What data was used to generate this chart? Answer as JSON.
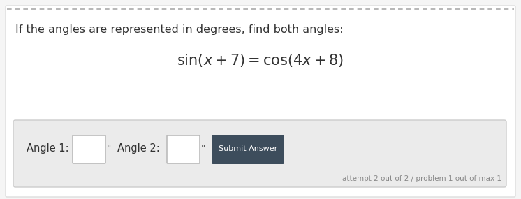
{
  "bg_color": "#f5f5f5",
  "card_bg": "#ffffff",
  "card_border": "#dddddd",
  "top_dashed_color": "#aaaaaa",
  "instruction_text": "If the angles are represented in degrees, find both angles:",
  "instruction_color": "#333333",
  "instruction_fontsize": 11.5,
  "equation": "sin(x + 7) = cos(4x + 8)",
  "equation_color": "#333333",
  "answer_box_bg": "#eeeeee",
  "answer_box_border": "#cccccc",
  "angle1_label": "Angle 1:",
  "angle2_label": "Angle 2:",
  "label_color": "#333333",
  "label_fontsize": 10.5,
  "button_bg": "#3d4d5c",
  "button_text": "Submit Answer",
  "button_text_color": "#ffffff",
  "button_fontsize": 8,
  "attempt_text": "attempt 2 out of 2 / problem 1 out of max 1",
  "attempt_color": "#888888",
  "attempt_fontsize": 7.5,
  "degree_symbol": "°"
}
